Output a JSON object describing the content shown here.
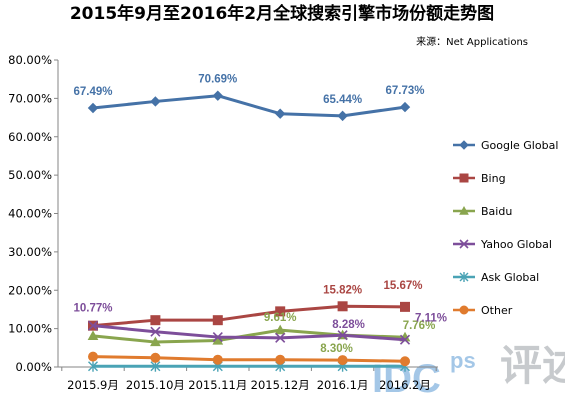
{
  "header": {
    "title": "2015年9月至2016年2月全球搜索引擎市场份额走势图",
    "source": "来源：Net Applications"
  },
  "watermark": {
    "brand": "IDC",
    "sub": "ps",
    "glyph": "评述"
  },
  "chart_data": {
    "type": "line",
    "title": "2015年9月至2016年2月全球搜索引擎市场份额走势图",
    "xlabel": "",
    "ylabel": "",
    "categories": [
      "2015.9月",
      "2015.10月",
      "2015.11月",
      "2015.12月",
      "2016.1月",
      "2016.2月"
    ],
    "ylim": [
      0,
      80
    ],
    "yticks": [
      "0.00%",
      "10.00%",
      "20.00%",
      "30.00%",
      "40.00%",
      "50.00%",
      "60.00%",
      "70.00%",
      "80.00%"
    ],
    "grid": false,
    "legend_position": "right",
    "series": [
      {
        "name": "Google   Global",
        "color": "#4572A7",
        "marker": "diamond",
        "values": [
          67.49,
          69.2,
          70.69,
          66.0,
          65.44,
          67.73
        ],
        "labels": [
          "67.49%",
          null,
          "70.69%",
          null,
          "65.44%",
          "67.73%"
        ]
      },
      {
        "name": "Bing",
        "color": "#AA4643",
        "marker": "square",
        "values": [
          10.77,
          12.2,
          12.2,
          14.5,
          15.82,
          15.67
        ],
        "labels": [
          null,
          null,
          null,
          null,
          "15.82%",
          "15.67%"
        ]
      },
      {
        "name": "Baidu",
        "color": "#89A54E",
        "marker": "triangle",
        "values": [
          8.1,
          6.5,
          6.9,
          9.61,
          8.3,
          7.76
        ],
        "labels": [
          null,
          null,
          null,
          "9.61%",
          "8.30%",
          "7.76%"
        ]
      },
      {
        "name": "Yahoo   Global",
        "color": "#7D4E9A",
        "marker": "x",
        "values": [
          10.77,
          9.2,
          7.8,
          7.6,
          8.28,
          7.11
        ],
        "labels": [
          "10.77%",
          null,
          null,
          null,
          "8.28%",
          "7.11%"
        ]
      },
      {
        "name": "Ask   Global",
        "color": "#4AA3B5",
        "marker": "star",
        "values": [
          0.2,
          0.2,
          0.2,
          0.2,
          0.2,
          0.2
        ],
        "labels": [
          null,
          null,
          null,
          null,
          null,
          null
        ]
      },
      {
        "name": "Other",
        "color": "#E07B2E",
        "marker": "circle",
        "values": [
          2.7,
          2.4,
          1.9,
          1.9,
          1.8,
          1.5
        ],
        "labels": [
          null,
          null,
          null,
          null,
          null,
          null
        ]
      }
    ]
  }
}
